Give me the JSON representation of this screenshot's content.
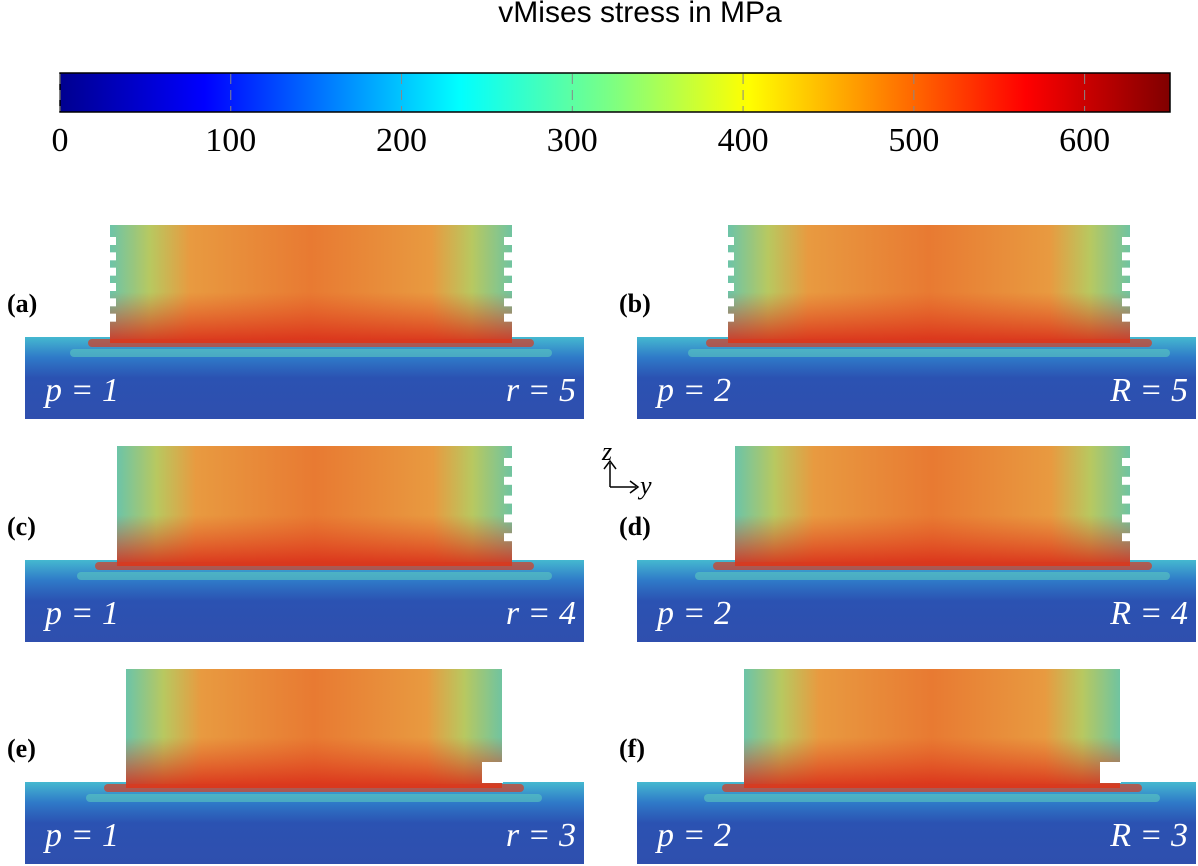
{
  "title": "vMises stress in MPa",
  "colorbar": {
    "lim": [
      0,
      650
    ],
    "ticks": [
      0,
      100,
      200,
      300,
      400,
      500,
      600
    ]
  },
  "axes_indicator": {
    "vertical": "z",
    "horizontal": "y"
  },
  "panels": [
    {
      "label": "(a)",
      "left": "p = 1",
      "right": "r = 5"
    },
    {
      "label": "(b)",
      "left": "p = 2",
      "right": "R = 5"
    },
    {
      "label": "(c)",
      "left": "p = 1",
      "right": "r = 4"
    },
    {
      "label": "(d)",
      "left": "p = 2",
      "right": "R = 4"
    },
    {
      "label": "(e)",
      "left": "p = 1",
      "right": "r = 3"
    },
    {
      "label": "(f)",
      "left": "p = 2",
      "right": "R = 3"
    }
  ]
}
